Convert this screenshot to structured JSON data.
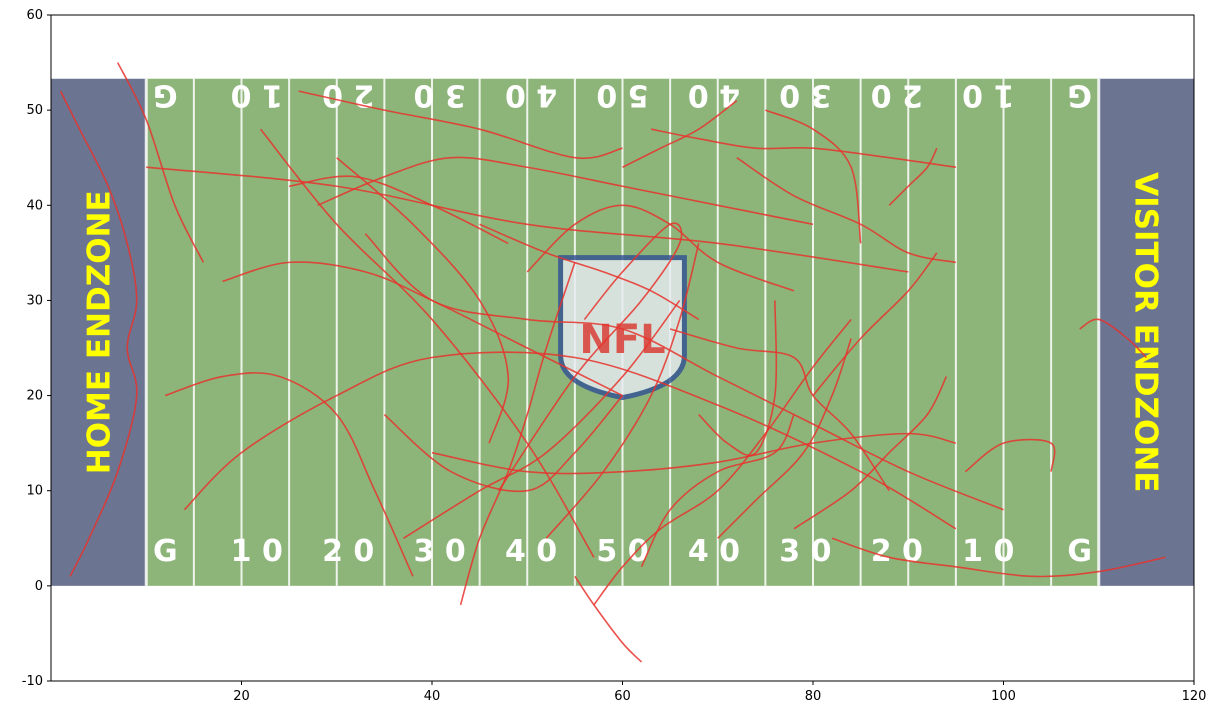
{
  "chart_data": {
    "type": "line",
    "title": "",
    "xlabel": "",
    "ylabel": "",
    "xlim": [
      0,
      120
    ],
    "ylim": [
      -10,
      60
    ],
    "x_ticks": [
      20,
      40,
      60,
      80,
      100,
      120
    ],
    "y_ticks": [
      -10,
      0,
      10,
      20,
      30,
      40,
      50,
      60
    ],
    "grid": false,
    "field": {
      "x_range": [
        0,
        120
      ],
      "y_range": [
        0,
        53.3
      ],
      "home_endzone_label": "HOME ENDZONE",
      "visitor_endzone_label": "VISITOR ENDZONE",
      "logo_text": "NFL",
      "bottom_numbers": [
        "G",
        "1 0",
        "2 0",
        "3 0",
        "4 0",
        "5 0",
        "4 0",
        "3 0",
        "2 0",
        "1 0",
        "G"
      ],
      "top_numbers": [
        "G",
        "1 0",
        "2 0",
        "3 0",
        "4 0",
        "5 0",
        "4 0",
        "3 0",
        "2 0",
        "1 0",
        "G"
      ],
      "colors": {
        "turf": "#8db57a",
        "endzone": "#6b7591",
        "lines": "#ffffff",
        "endzone_text": "#ffff00",
        "tracks": "#e8322d"
      }
    },
    "series": [
      {
        "x": [
          1,
          3,
          6,
          8,
          9,
          8,
          9,
          7,
          4,
          2
        ],
        "y": [
          52,
          48,
          42,
          36,
          30,
          25,
          20,
          12,
          5,
          1
        ]
      },
      {
        "x": [
          7,
          10,
          13,
          16
        ],
        "y": [
          55,
          49,
          40,
          34
        ]
      },
      {
        "x": [
          10,
          30,
          50,
          70,
          90
        ],
        "y": [
          44,
          42,
          38,
          36,
          33
        ]
      },
      {
        "x": [
          14,
          20,
          30,
          40,
          55,
          70,
          85,
          95
        ],
        "y": [
          8,
          14,
          20,
          24,
          24,
          19,
          12,
          6
        ]
      },
      {
        "x": [
          18,
          25,
          33,
          40,
          50,
          60
        ],
        "y": [
          32,
          34,
          33,
          30,
          25,
          20
        ]
      },
      {
        "x": [
          22,
          30,
          40,
          50,
          57
        ],
        "y": [
          48,
          38,
          28,
          15,
          3
        ]
      },
      {
        "x": [
          25,
          32,
          40,
          48
        ],
        "y": [
          42,
          43,
          40,
          36
        ]
      },
      {
        "x": [
          26,
          35,
          45,
          55,
          60
        ],
        "y": [
          52,
          50,
          48,
          45,
          46
        ]
      },
      {
        "x": [
          28,
          35,
          42,
          50,
          60,
          70,
          80
        ],
        "y": [
          40,
          43,
          45,
          44,
          42,
          40,
          38
        ]
      },
      {
        "x": [
          30,
          38,
          45,
          48,
          46
        ],
        "y": [
          45,
          38,
          30,
          22,
          15
        ]
      },
      {
        "x": [
          33,
          40,
          50,
          60,
          70,
          80,
          90,
          100
        ],
        "y": [
          37,
          30,
          28,
          27,
          22,
          17,
          12,
          8
        ]
      },
      {
        "x": [
          35,
          42,
          50,
          55,
          60
        ],
        "y": [
          18,
          12,
          10,
          14,
          20
        ]
      },
      {
        "x": [
          37,
          45,
          52,
          60,
          66
        ],
        "y": [
          5,
          10,
          14,
          22,
          30
        ]
      },
      {
        "x": [
          40,
          50,
          60,
          70,
          80,
          90,
          95
        ],
        "y": [
          14,
          12,
          12,
          13,
          15,
          16,
          15
        ]
      },
      {
        "x": [
          43,
          45,
          48,
          50,
          52,
          55
        ],
        "y": [
          -2,
          5,
          12,
          18,
          25,
          34
        ]
      },
      {
        "x": [
          45,
          52,
          58,
          63,
          68
        ],
        "y": [
          38,
          35,
          33,
          31,
          28
        ]
      },
      {
        "x": [
          47,
          55,
          62,
          66,
          65,
          60,
          56
        ],
        "y": [
          10,
          22,
          30,
          36,
          38,
          33,
          28
        ]
      },
      {
        "x": [
          50,
          55,
          60,
          65,
          70,
          78
        ],
        "y": [
          33,
          38,
          40,
          38,
          34,
          31
        ]
      },
      {
        "x": [
          52,
          58,
          63,
          66,
          68
        ],
        "y": [
          5,
          12,
          20,
          28,
          36
        ]
      },
      {
        "x": [
          55,
          57,
          60,
          62
        ],
        "y": [
          1,
          -2,
          -6,
          -8
        ]
      },
      {
        "x": [
          57,
          60,
          64,
          70,
          75,
          80,
          84
        ],
        "y": [
          -2,
          2,
          6,
          10,
          16,
          23,
          28
        ]
      },
      {
        "x": [
          60,
          64,
          68,
          72
        ],
        "y": [
          44,
          46,
          48,
          51
        ]
      },
      {
        "x": [
          62,
          65,
          70,
          76,
          78
        ],
        "y": [
          2,
          8,
          12,
          14,
          18
        ]
      },
      {
        "x": [
          63,
          68,
          74,
          80,
          88,
          95
        ],
        "y": [
          48,
          47,
          46,
          46,
          45,
          44
        ]
      },
      {
        "x": [
          65,
          72,
          78,
          80,
          84,
          88
        ],
        "y": [
          27,
          25,
          24,
          20,
          16,
          10
        ]
      },
      {
        "x": [
          68,
          71,
          74,
          76,
          76
        ],
        "y": [
          18,
          15,
          14,
          20,
          30
        ]
      },
      {
        "x": [
          70,
          74,
          79,
          82,
          84
        ],
        "y": [
          5,
          9,
          14,
          20,
          26
        ]
      },
      {
        "x": [
          72,
          78,
          85,
          90,
          95
        ],
        "y": [
          45,
          41,
          38,
          35,
          34
        ]
      },
      {
        "x": [
          75,
          80,
          84,
          85
        ],
        "y": [
          50,
          48,
          44,
          36
        ]
      },
      {
        "x": [
          78,
          84,
          88,
          92,
          94
        ],
        "y": [
          6,
          10,
          14,
          18,
          22
        ]
      },
      {
        "x": [
          80,
          85,
          90,
          93
        ],
        "y": [
          20,
          26,
          31,
          35
        ]
      },
      {
        "x": [
          82,
          88,
          95,
          103,
          110,
          117
        ],
        "y": [
          5,
          3,
          2,
          1,
          1.5,
          3
        ]
      },
      {
        "x": [
          88,
          90,
          92,
          93
        ],
        "y": [
          40,
          42,
          44,
          46
        ]
      },
      {
        "x": [
          96,
          100,
          105,
          105
        ],
        "y": [
          12,
          15,
          15,
          12
        ]
      },
      {
        "x": [
          108,
          110,
          113,
          115
        ],
        "y": [
          27,
          28,
          26,
          24
        ]
      },
      {
        "x": [
          12,
          18,
          24,
          30,
          34,
          38
        ],
        "y": [
          20,
          22,
          22,
          18,
          10,
          1
        ]
      }
    ]
  }
}
